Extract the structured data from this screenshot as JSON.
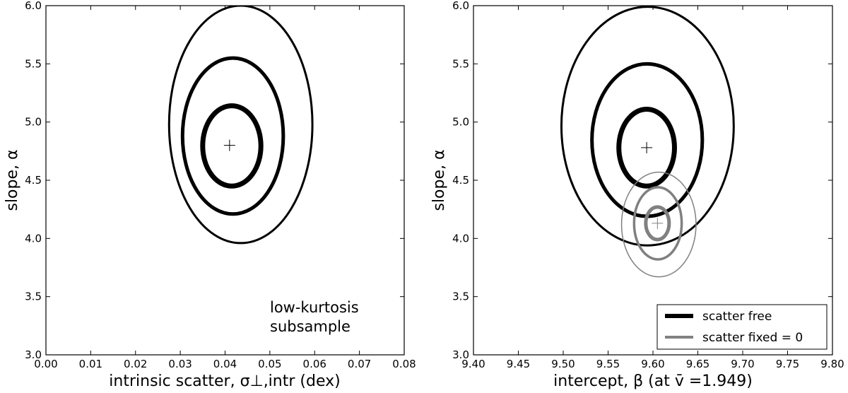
{
  "chart_data": [
    {
      "type": "contour",
      "xlabel": "intrinsic scatter, σ⊥,intr  (dex)",
      "ylabel": "slope, α",
      "xlim": [
        0.0,
        0.08
      ],
      "ylim": [
        3.0,
        6.0
      ],
      "xticks": [
        "0.00",
        "0.01",
        "0.02",
        "0.03",
        "0.04",
        "0.05",
        "0.06",
        "0.07",
        "0.08"
      ],
      "yticks": [
        "3.0",
        "3.5",
        "4.0",
        "4.5",
        "5.0",
        "5.5",
        "6.0"
      ],
      "annotation": [
        "low-kurtosis",
        "subsample"
      ],
      "series": [
        {
          "group": "scatter free",
          "color": "#000000",
          "best_fit": {
            "x": 0.041,
            "y": 4.8
          },
          "contours": [
            {
              "level": 1,
              "xmin": 0.035,
              "xmax": 0.048,
              "ymin": 4.45,
              "ymax": 5.14
            },
            {
              "level": 2,
              "xmin": 0.0305,
              "xmax": 0.053,
              "ymin": 4.21,
              "ymax": 5.55
            },
            {
              "level": 3,
              "xmin": 0.0275,
              "xmax": 0.0595,
              "ymin": 3.96,
              "ymax": 6.0
            }
          ]
        }
      ]
    },
    {
      "type": "contour",
      "xlabel": "intercept, β  (at v̄ =1.949)",
      "ylabel": "slope, α",
      "xlim": [
        9.4,
        9.8
      ],
      "ylim": [
        3.0,
        6.0
      ],
      "xticks": [
        "9.40",
        "9.45",
        "9.50",
        "9.55",
        "9.60",
        "9.65",
        "9.70",
        "9.75",
        "9.80"
      ],
      "yticks": [
        "3.0",
        "3.5",
        "4.0",
        "4.5",
        "5.0",
        "5.5",
        "6.0"
      ],
      "legend": {
        "position": "lower-right",
        "entries": [
          "scatter free",
          "scatter fixed = 0"
        ]
      },
      "series": [
        {
          "name": "scatter free",
          "color": "#000000",
          "best_fit": {
            "x": 9.593,
            "y": 4.78
          },
          "contours": [
            {
              "level": 1,
              "xmin": 9.562,
              "xmax": 9.624,
              "ymin": 4.45,
              "ymax": 5.11
            },
            {
              "level": 2,
              "xmin": 9.532,
              "xmax": 9.655,
              "ymin": 4.19,
              "ymax": 5.5
            },
            {
              "level": 3,
              "xmin": 9.498,
              "xmax": 9.69,
              "ymin": 3.94,
              "ymax": 5.99
            }
          ]
        },
        {
          "name": "scatter fixed = 0",
          "color": "#808080",
          "best_fit": {
            "x": 9.605,
            "y": 4.13
          },
          "contours": [
            {
              "level": 1,
              "xmin": 9.592,
              "xmax": 9.618,
              "ymin": 3.99,
              "ymax": 4.27
            },
            {
              "level": 2,
              "xmin": 9.579,
              "xmax": 9.632,
              "ymin": 3.82,
              "ymax": 4.44
            },
            {
              "level": 3,
              "xmin": 9.565,
              "xmax": 9.648,
              "ymin": 3.67,
              "ymax": 4.57
            }
          ]
        }
      ]
    }
  ]
}
